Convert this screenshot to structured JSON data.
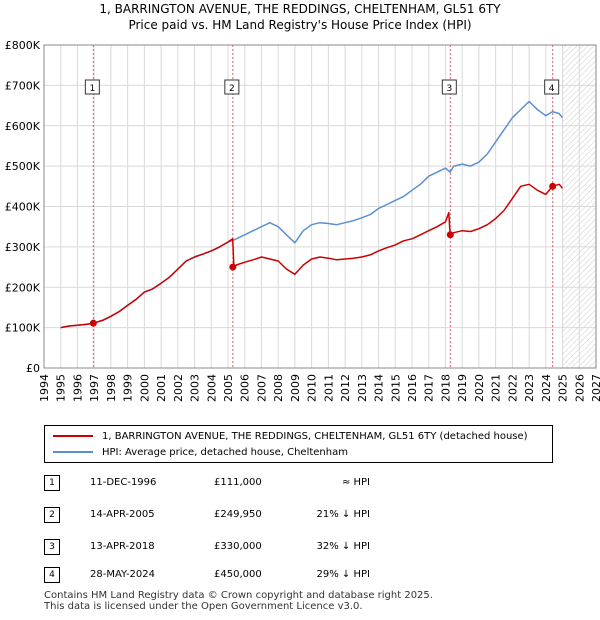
{
  "chart_data": {
    "type": "line",
    "title": "1, BARRINGTON AVENUE, THE REDDINGS, CHELTENHAM, GL51 6TY",
    "subtitle": "Price paid vs. HM Land Registry's House Price Index (HPI)",
    "xlabel": "",
    "ylabel": "",
    "xlim": [
      1994,
      2027
    ],
    "ylim": [
      0,
      800000
    ],
    "x_ticks": [
      "1994",
      "1995",
      "1996",
      "1997",
      "1998",
      "1999",
      "2000",
      "2001",
      "2002",
      "2003",
      "2004",
      "2005",
      "2006",
      "2007",
      "2008",
      "2009",
      "2010",
      "2011",
      "2012",
      "2013",
      "2014",
      "2015",
      "2016",
      "2017",
      "2018",
      "2019",
      "2020",
      "2021",
      "2022",
      "2023",
      "2024",
      "2025",
      "2026",
      "2027"
    ],
    "y_ticks": [
      {
        "value": 0,
        "label": "£0"
      },
      {
        "value": 100000,
        "label": "£100K"
      },
      {
        "value": 200000,
        "label": "£200K"
      },
      {
        "value": 300000,
        "label": "£300K"
      },
      {
        "value": 400000,
        "label": "£400K"
      },
      {
        "value": 500000,
        "label": "£500K"
      },
      {
        "value": 600000,
        "label": "£600K"
      },
      {
        "value": 700000,
        "label": "£700K"
      },
      {
        "value": 800000,
        "label": "£800K"
      }
    ],
    "grid": true,
    "future_shaded_from": 2025.0,
    "series": [
      {
        "name": "1, BARRINGTON AVENUE, THE REDDINGS, CHELTENHAM, GL51 6TY (detached house)",
        "color": "#cc0000",
        "x": [
          1995.0,
          1995.5,
          1996.0,
          1996.5,
          1996.95,
          1997.5,
          1998.0,
          1998.5,
          1999.0,
          1999.5,
          2000.0,
          2000.5,
          2001.0,
          2001.5,
          2002.0,
          2002.5,
          2003.0,
          2003.5,
          2004.0,
          2004.5,
          2005.0,
          2005.28,
          2005.35,
          2005.5,
          2006.0,
          2006.5,
          2007.0,
          2007.5,
          2008.0,
          2008.5,
          2009.0,
          2009.5,
          2010.0,
          2010.5,
          2011.0,
          2011.5,
          2012.0,
          2012.5,
          2013.0,
          2013.5,
          2014.0,
          2014.5,
          2015.0,
          2015.5,
          2016.0,
          2016.5,
          2017.0,
          2017.5,
          2018.0,
          2018.2,
          2018.28,
          2018.5,
          2019.0,
          2019.5,
          2020.0,
          2020.5,
          2021.0,
          2021.5,
          2022.0,
          2022.5,
          2023.0,
          2023.5,
          2024.0,
          2024.4,
          2024.8,
          2025.0
        ],
        "y": [
          100000,
          104000,
          106000,
          108000,
          111000,
          118000,
          128000,
          140000,
          155000,
          170000,
          188000,
          196000,
          210000,
          225000,
          245000,
          265000,
          275000,
          282000,
          290000,
          300000,
          312000,
          320000,
          249950,
          255000,
          262000,
          268000,
          275000,
          270000,
          265000,
          245000,
          232000,
          255000,
          270000,
          275000,
          272000,
          268000,
          270000,
          272000,
          275000,
          280000,
          290000,
          298000,
          305000,
          315000,
          320000,
          330000,
          340000,
          350000,
          362000,
          385000,
          330000,
          335000,
          340000,
          338000,
          345000,
          355000,
          370000,
          390000,
          420000,
          450000,
          455000,
          440000,
          430000,
          450000,
          455000,
          445000
        ]
      },
      {
        "name": "HPI: Average price, detached house, Cheltenham",
        "color": "#5b8fd4",
        "x": [
          1995.0,
          1995.5,
          1996.0,
          1996.5,
          1996.95,
          1997.5,
          1998.0,
          1998.5,
          1999.0,
          1999.5,
          2000.0,
          2000.5,
          2001.0,
          2001.5,
          2002.0,
          2002.5,
          2003.0,
          2003.5,
          2004.0,
          2004.5,
          2005.0,
          2005.28,
          2005.5,
          2006.0,
          2006.5,
          2007.0,
          2007.5,
          2008.0,
          2008.5,
          2009.0,
          2009.5,
          2010.0,
          2010.5,
          2011.0,
          2011.5,
          2012.0,
          2012.5,
          2013.0,
          2013.5,
          2014.0,
          2014.5,
          2015.0,
          2015.5,
          2016.0,
          2016.5,
          2017.0,
          2017.5,
          2018.0,
          2018.28,
          2018.5,
          2019.0,
          2019.5,
          2020.0,
          2020.5,
          2021.0,
          2021.5,
          2022.0,
          2022.5,
          2023.0,
          2023.5,
          2024.0,
          2024.4,
          2024.8,
          2025.0
        ],
        "y": [
          100000,
          104000,
          106000,
          108000,
          111000,
          118000,
          128000,
          140000,
          155000,
          170000,
          188000,
          196000,
          210000,
          225000,
          245000,
          265000,
          275000,
          282000,
          290000,
          300000,
          312000,
          316000,
          320000,
          330000,
          340000,
          350000,
          360000,
          350000,
          330000,
          310000,
          340000,
          355000,
          360000,
          358000,
          355000,
          360000,
          365000,
          372000,
          380000,
          395000,
          405000,
          415000,
          425000,
          440000,
          455000,
          475000,
          485000,
          495000,
          485000,
          500000,
          505000,
          500000,
          510000,
          530000,
          560000,
          590000,
          620000,
          640000,
          660000,
          640000,
          625000,
          635000,
          630000,
          620000
        ]
      }
    ],
    "markers": [
      {
        "label": "1",
        "x": 1996.95,
        "y": 111000
      },
      {
        "label": "2",
        "x": 2005.29,
        "y": 249950
      },
      {
        "label": "3",
        "x": 2018.29,
        "y": 330000
      },
      {
        "label": "4",
        "x": 2024.41,
        "y": 450000
      }
    ]
  },
  "legend": {
    "property_label": "1, BARRINGTON AVENUE, THE REDDINGS, CHELTENHAM, GL51 6TY (detached house)",
    "hpi_label": "HPI: Average price, detached house, Cheltenham"
  },
  "sales": [
    {
      "num": "1",
      "date": "11-DEC-1996",
      "price": "£111,000",
      "hpi": "≈ HPI"
    },
    {
      "num": "2",
      "date": "14-APR-2005",
      "price": "£249,950",
      "hpi": "21% ↓ HPI"
    },
    {
      "num": "3",
      "date": "13-APR-2018",
      "price": "£330,000",
      "hpi": "32% ↓ HPI"
    },
    {
      "num": "4",
      "date": "28-MAY-2024",
      "price": "£450,000",
      "hpi": "29% ↓ HPI"
    }
  ],
  "footer": {
    "line1": "Contains HM Land Registry data © Crown copyright and database right 2025.",
    "line2": "This data is licensed under the Open Government Licence v3.0."
  }
}
